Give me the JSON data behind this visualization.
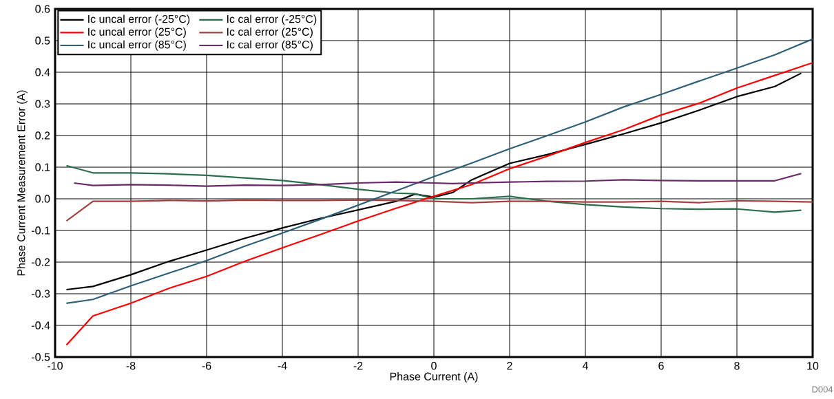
{
  "chart_data": {
    "type": "line",
    "xlabel": "Phase Current (A)",
    "ylabel": "Phase Current Measurement Error (A)",
    "xlim": [
      -10,
      10
    ],
    "xticks": [
      -10,
      -8,
      -6,
      -4,
      -2,
      0,
      2,
      4,
      6,
      8,
      10
    ],
    "ylim": [
      -0.5,
      0.6
    ],
    "yticks": [
      -0.5,
      -0.4,
      -0.3,
      -0.2,
      -0.1,
      {
        "value": 0,
        "label": "0.0"
      },
      0.1,
      0.2,
      0.3,
      0.4,
      0.5,
      0.6
    ],
    "grid": true,
    "legend": "top left",
    "marker": "none",
    "line_style": "solid",
    "annotations": [
      "D004"
    ],
    "series": [
      {
        "name": "Ic uncal error (-25°C)",
        "color": "#000000",
        "x": [
          -9.7,
          -9,
          -8,
          -7,
          -6,
          -5,
          -4,
          -3,
          -2,
          -1,
          -0.5,
          0,
          0.5,
          1,
          2,
          3,
          4,
          5,
          6,
          7,
          8,
          9,
          9.7
        ],
        "values": [
          -0.287,
          -0.277,
          -0.24,
          -0.198,
          -0.162,
          -0.125,
          -0.092,
          -0.062,
          -0.035,
          -0.008,
          0.015,
          0.005,
          0.02,
          0.06,
          0.112,
          0.14,
          0.172,
          0.205,
          0.24,
          0.28,
          0.323,
          0.355,
          0.397
        ]
      },
      {
        "name": "Ic uncal error (25°C)",
        "color": "#ff0000",
        "x": [
          -9.7,
          -9,
          -8,
          -7,
          -6,
          -5,
          -4,
          -3,
          -2,
          -1,
          0,
          1,
          2,
          3,
          4,
          5,
          6,
          7,
          8,
          9,
          10
        ],
        "values": [
          -0.462,
          -0.37,
          -0.33,
          -0.283,
          -0.245,
          -0.198,
          -0.155,
          -0.113,
          -0.07,
          -0.03,
          0.008,
          0.045,
          0.095,
          0.135,
          0.178,
          0.218,
          0.265,
          0.302,
          0.35,
          0.39,
          0.43
        ]
      },
      {
        "name": "Ic uncal error (85°C)",
        "color": "#2e5f78",
        "x": [
          -9.7,
          -9,
          -8,
          -7,
          -6,
          -5,
          -4,
          -3,
          -2,
          -1,
          0,
          1,
          2,
          3,
          4,
          5,
          6,
          7,
          8,
          9,
          10
        ],
        "values": [
          -0.33,
          -0.318,
          -0.275,
          -0.235,
          -0.195,
          -0.15,
          -0.108,
          -0.065,
          -0.02,
          0.025,
          0.07,
          0.113,
          0.158,
          0.2,
          0.243,
          0.29,
          0.33,
          0.372,
          0.413,
          0.455,
          0.505
        ]
      },
      {
        "name": "Ic cal error (-25°C)",
        "color": "#2a6e4a",
        "x": [
          -9.7,
          -9,
          -8,
          -7,
          -6,
          -5,
          -4,
          -3,
          -2,
          -1,
          -0.5,
          0,
          1,
          2,
          3,
          4,
          5,
          6,
          7,
          8,
          9,
          9.7
        ],
        "values": [
          0.105,
          0.082,
          0.082,
          0.079,
          0.074,
          0.066,
          0.058,
          0.045,
          0.03,
          0.018,
          0.016,
          0.0,
          0.0,
          0.008,
          -0.008,
          -0.018,
          -0.026,
          -0.031,
          -0.033,
          -0.032,
          -0.042,
          -0.036
        ]
      },
      {
        "name": "Ic cal error (25°C)",
        "color": "#a5403f",
        "x": [
          -9.7,
          -9,
          -8,
          -7,
          -6,
          -5,
          -4,
          -3,
          -2,
          -1,
          0,
          0.5,
          1,
          2,
          3,
          4,
          5,
          6,
          7,
          8,
          9,
          10
        ],
        "values": [
          -0.07,
          -0.008,
          -0.008,
          -0.005,
          -0.007,
          -0.004,
          -0.005,
          -0.005,
          -0.004,
          -0.005,
          -0.008,
          -0.01,
          -0.012,
          -0.008,
          -0.008,
          -0.01,
          -0.01,
          -0.008,
          -0.012,
          -0.006,
          -0.008,
          -0.01
        ]
      },
      {
        "name": "Ic cal error (85°C)",
        "color": "#6a2a6a",
        "x": [
          -9.5,
          -9,
          -8,
          -7,
          -6,
          -5,
          -4,
          -3,
          -2,
          -1,
          0,
          0.5,
          1,
          2,
          3,
          4,
          5,
          6,
          7,
          8,
          9,
          9.7
        ],
        "values": [
          0.05,
          0.042,
          0.045,
          0.043,
          0.04,
          0.043,
          0.042,
          0.045,
          0.05,
          0.053,
          0.05,
          0.048,
          0.05,
          0.053,
          0.055,
          0.056,
          0.06,
          0.058,
          0.057,
          0.057,
          0.057,
          0.08
        ]
      }
    ]
  }
}
